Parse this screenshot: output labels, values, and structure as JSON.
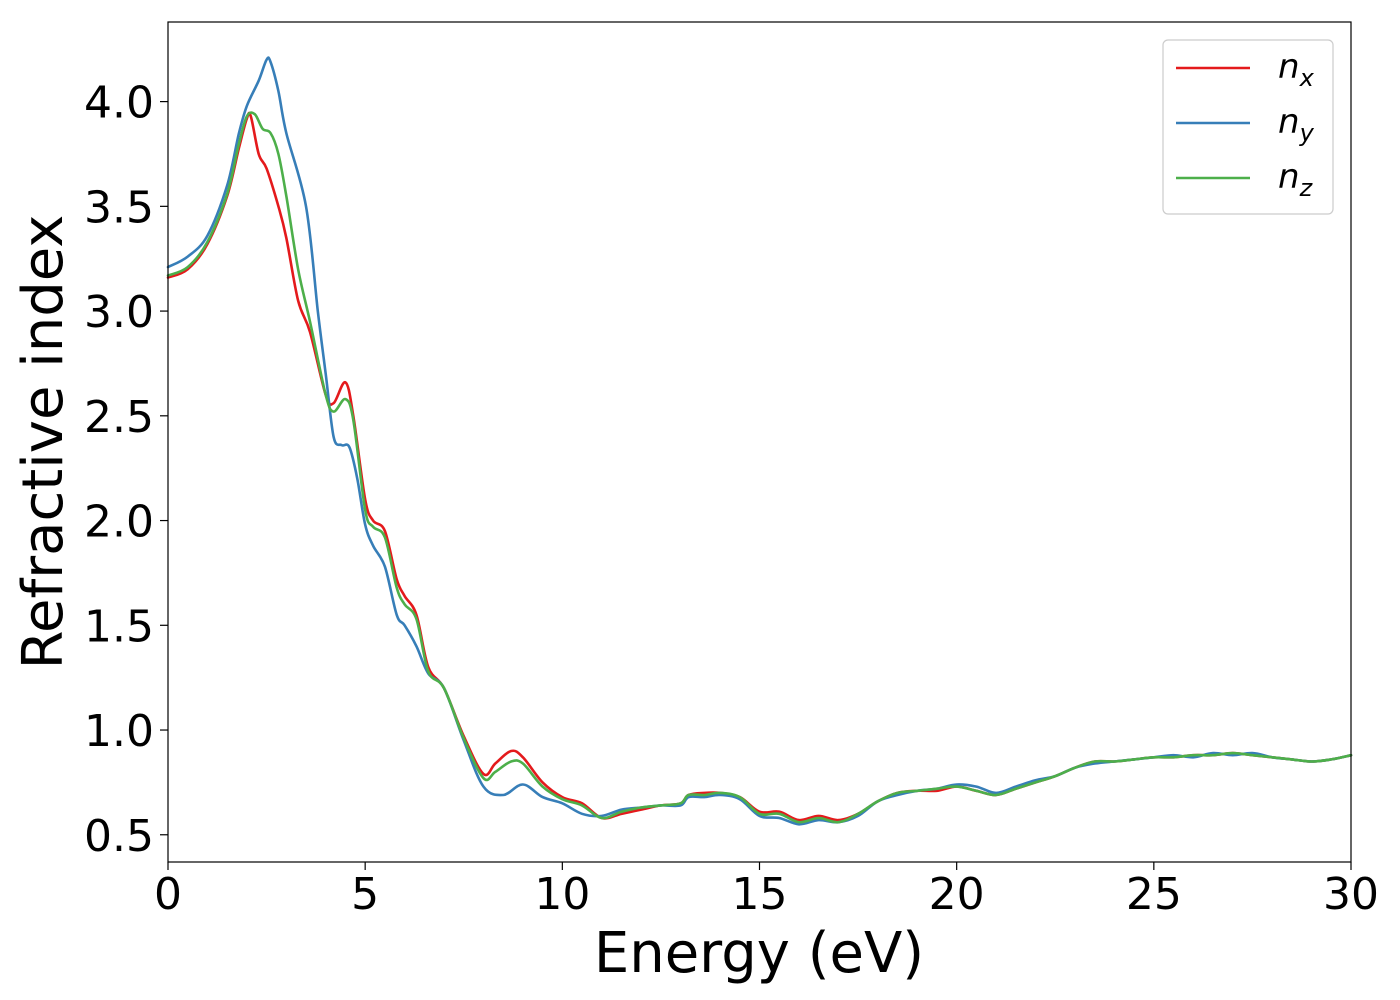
{
  "chart_data": {
    "type": "line",
    "xlabel": "Energy (eV)",
    "ylabel": "Refractive index",
    "xlim": [
      0,
      30
    ],
    "ylim": [
      0.37,
      4.38
    ],
    "xticks": [
      0,
      5,
      10,
      15,
      20,
      25,
      30
    ],
    "xtick_labels": [
      "0",
      "5",
      "10",
      "15",
      "20",
      "25",
      "30"
    ],
    "yticks": [
      0.5,
      1.0,
      1.5,
      2.0,
      2.5,
      3.0,
      3.5,
      4.0
    ],
    "ytick_labels": [
      "0.5",
      "1.0",
      "1.5",
      "2.0",
      "2.5",
      "3.0",
      "3.5",
      "4.0"
    ],
    "grid": false,
    "legend_position": "top-right",
    "series": [
      {
        "name": "n_x",
        "base": "n",
        "sub": "x",
        "color": "#e41a1c",
        "x": [
          0,
          0.5,
          1.0,
          1.5,
          1.8,
          2.0,
          2.1,
          2.3,
          2.5,
          2.8,
          3.0,
          3.3,
          3.6,
          4.0,
          4.2,
          4.5,
          4.7,
          5.0,
          5.2,
          5.5,
          5.8,
          6.0,
          6.3,
          6.6,
          7.0,
          7.5,
          8.0,
          8.3,
          8.7,
          9.0,
          9.5,
          10.0,
          10.5,
          11.0,
          11.5,
          12.0,
          12.5,
          13.0,
          13.2,
          13.6,
          14.0,
          14.5,
          15.0,
          15.5,
          16.0,
          16.5,
          17.0,
          17.5,
          18.0,
          18.5,
          19.0,
          19.5,
          20.0,
          20.5,
          21.0,
          21.5,
          22.0,
          22.5,
          23.0,
          23.5,
          24.0,
          24.5,
          25.0,
          25.5,
          26.0,
          26.5,
          27.0,
          27.5,
          28.0,
          28.5,
          29.0,
          29.5,
          30.0
        ],
        "y": [
          3.16,
          3.2,
          3.32,
          3.55,
          3.78,
          3.92,
          3.93,
          3.75,
          3.68,
          3.5,
          3.35,
          3.05,
          2.9,
          2.6,
          2.56,
          2.66,
          2.5,
          2.1,
          2.0,
          1.95,
          1.72,
          1.64,
          1.55,
          1.3,
          1.2,
          0.97,
          0.79,
          0.84,
          0.9,
          0.87,
          0.75,
          0.68,
          0.65,
          0.58,
          0.6,
          0.62,
          0.64,
          0.65,
          0.69,
          0.7,
          0.7,
          0.68,
          0.61,
          0.61,
          0.57,
          0.59,
          0.57,
          0.6,
          0.66,
          0.7,
          0.71,
          0.71,
          0.73,
          0.71,
          0.69,
          0.72,
          0.75,
          0.78,
          0.82,
          0.85,
          0.85,
          0.86,
          0.87,
          0.87,
          0.88,
          0.88,
          0.89,
          0.88,
          0.87,
          0.86,
          0.85,
          0.86,
          0.88
        ]
      },
      {
        "name": "n_y",
        "base": "n",
        "sub": "y",
        "color": "#377eb8",
        "x": [
          0,
          0.5,
          1.0,
          1.5,
          1.8,
          2.0,
          2.3,
          2.5,
          2.6,
          2.8,
          3.0,
          3.5,
          3.8,
          4.0,
          4.2,
          4.4,
          4.6,
          4.8,
          5.0,
          5.2,
          5.5,
          5.8,
          6.0,
          6.3,
          6.6,
          7.0,
          7.5,
          8.0,
          8.5,
          9.0,
          9.5,
          10.0,
          10.5,
          11.0,
          11.5,
          12.0,
          12.5,
          13.0,
          13.2,
          13.6,
          14.0,
          14.5,
          15.0,
          15.5,
          16.0,
          16.5,
          17.0,
          17.5,
          18.0,
          18.5,
          19.0,
          19.5,
          20.0,
          20.5,
          21.0,
          21.5,
          22.0,
          22.5,
          23.0,
          23.5,
          24.0,
          24.5,
          25.0,
          25.5,
          26.0,
          26.5,
          27.0,
          27.5,
          28.0,
          28.5,
          29.0,
          29.5,
          30.0
        ],
        "y": [
          3.21,
          3.26,
          3.36,
          3.6,
          3.85,
          3.98,
          4.1,
          4.2,
          4.19,
          4.05,
          3.85,
          3.5,
          3.0,
          2.7,
          2.4,
          2.36,
          2.35,
          2.2,
          1.98,
          1.88,
          1.78,
          1.55,
          1.5,
          1.4,
          1.27,
          1.2,
          0.95,
          0.73,
          0.69,
          0.74,
          0.68,
          0.65,
          0.6,
          0.59,
          0.62,
          0.63,
          0.64,
          0.64,
          0.68,
          0.68,
          0.69,
          0.67,
          0.59,
          0.58,
          0.55,
          0.57,
          0.56,
          0.59,
          0.66,
          0.69,
          0.71,
          0.72,
          0.74,
          0.73,
          0.7,
          0.73,
          0.76,
          0.78,
          0.82,
          0.84,
          0.85,
          0.86,
          0.87,
          0.88,
          0.87,
          0.89,
          0.88,
          0.89,
          0.87,
          0.86,
          0.85,
          0.86,
          0.88
        ]
      },
      {
        "name": "n_z",
        "base": "n",
        "sub": "z",
        "color": "#4daf4a",
        "x": [
          0,
          0.5,
          1.0,
          1.5,
          1.8,
          2.0,
          2.2,
          2.4,
          2.6,
          2.8,
          3.0,
          3.3,
          3.6,
          4.0,
          4.2,
          4.5,
          4.7,
          5.0,
          5.2,
          5.5,
          5.8,
          6.0,
          6.3,
          6.6,
          7.0,
          7.5,
          8.0,
          8.3,
          8.7,
          9.0,
          9.5,
          10.0,
          10.5,
          11.0,
          11.5,
          12.0,
          12.5,
          13.0,
          13.2,
          13.6,
          14.0,
          14.5,
          15.0,
          15.5,
          16.0,
          16.5,
          17.0,
          17.5,
          18.0,
          18.5,
          19.0,
          19.5,
          20.0,
          20.5,
          21.0,
          21.5,
          22.0,
          22.5,
          23.0,
          23.5,
          24.0,
          24.5,
          25.0,
          25.5,
          26.0,
          26.5,
          27.0,
          27.5,
          28.0,
          28.5,
          29.0,
          29.5,
          30.0
        ],
        "y": [
          3.17,
          3.21,
          3.33,
          3.56,
          3.8,
          3.93,
          3.94,
          3.87,
          3.85,
          3.75,
          3.55,
          3.2,
          2.95,
          2.6,
          2.52,
          2.58,
          2.48,
          2.05,
          1.97,
          1.92,
          1.68,
          1.6,
          1.53,
          1.28,
          1.2,
          0.96,
          0.77,
          0.8,
          0.85,
          0.84,
          0.73,
          0.67,
          0.64,
          0.58,
          0.61,
          0.63,
          0.64,
          0.65,
          0.69,
          0.69,
          0.7,
          0.68,
          0.6,
          0.6,
          0.56,
          0.58,
          0.56,
          0.6,
          0.66,
          0.7,
          0.71,
          0.72,
          0.73,
          0.71,
          0.69,
          0.72,
          0.75,
          0.78,
          0.82,
          0.85,
          0.85,
          0.86,
          0.87,
          0.87,
          0.88,
          0.88,
          0.89,
          0.88,
          0.87,
          0.86,
          0.85,
          0.86,
          0.88
        ]
      }
    ]
  }
}
